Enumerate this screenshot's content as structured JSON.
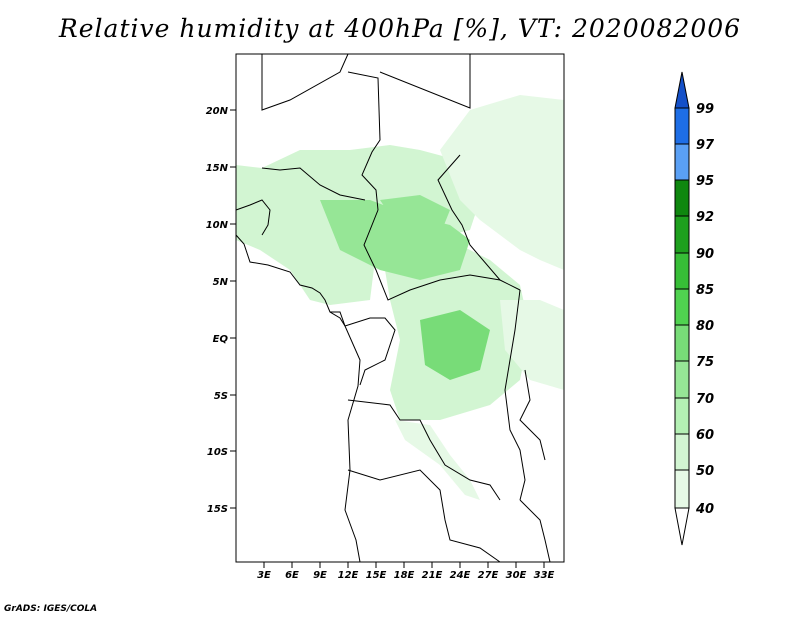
{
  "title": "Relative humidity at 400hPa [%], VT: 2020082006",
  "credit": "GrADS: IGES/COLA",
  "map": {
    "lon_range": [
      0,
      35
    ],
    "lat_range": [
      -20,
      24.5
    ],
    "lon_ticks": [
      "3E",
      "6E",
      "9E",
      "12E",
      "15E",
      "18E",
      "21E",
      "24E",
      "27E",
      "30E",
      "33E"
    ],
    "lat_ticks": [
      "20N",
      "15N",
      "10N",
      "5N",
      "EQ",
      "5S",
      "10S",
      "15S"
    ]
  },
  "colorbar": {
    "levels": [
      "40",
      "50",
      "60",
      "70",
      "75",
      "80",
      "85",
      "90",
      "92",
      "95",
      "97",
      "99"
    ],
    "colors": [
      "#ffffff",
      "#e6f9e6",
      "#d2f5d2",
      "#b4f0b4",
      "#96e696",
      "#78dc78",
      "#50d250",
      "#37be37",
      "#1ea01e",
      "#0f870f",
      "#5aa0f5",
      "#1e6ee6",
      "#1450c8"
    ]
  }
}
